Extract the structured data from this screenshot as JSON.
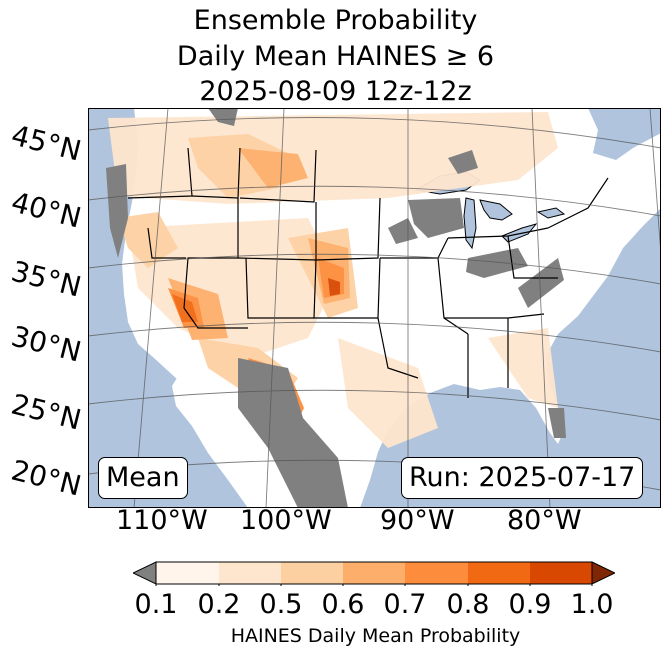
{
  "title": {
    "line1": "Ensemble Probability",
    "line2": "Daily Mean HAINES ≥ 6",
    "line3": "2025-08-09 12z-12z"
  },
  "map": {
    "lat_labels": [
      "45°N",
      "40°N",
      "35°N",
      "30°N",
      "25°N",
      "20°N"
    ],
    "lon_labels": [
      "110°W",
      "100°W",
      "90°W",
      "80°W"
    ],
    "ocean_color": "#b0c4de",
    "land_color": "#ffffff",
    "no_data_color": "#808080"
  },
  "stat_label": "Mean",
  "run_label": "Run: 2025-07-17",
  "colorbar": {
    "label": "HAINES Daily Mean Probability",
    "ticks": [
      "0.1",
      "0.2",
      "0.5",
      "0.6",
      "0.7",
      "0.8",
      "0.9",
      "1.0"
    ],
    "under_color": "#808080",
    "over_color": "#7f2704",
    "colors": [
      "#fff5eb",
      "#fee6ce",
      "#fdd0a2",
      "#fdae6b",
      "#fd8d3c",
      "#f16913",
      "#d94801"
    ]
  }
}
